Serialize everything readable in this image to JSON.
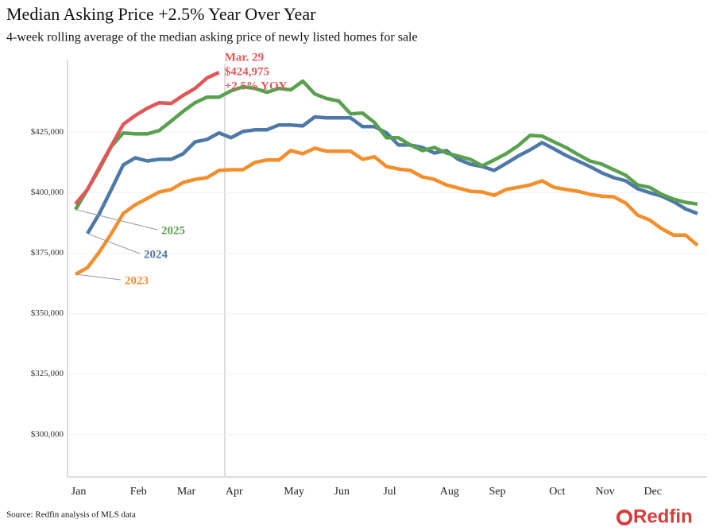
{
  "chart_data": {
    "type": "line",
    "title": "Median Asking Price +2.5% Year Over Year",
    "subtitle": "4-week rolling average of the median asking price of newly listed homes for sale",
    "categories": [
      "Jan",
      null,
      null,
      null,
      null,
      "Feb",
      null,
      null,
      null,
      "Mar",
      null,
      null,
      null,
      "Apr",
      null,
      null,
      null,
      null,
      "May",
      null,
      null,
      null,
      "Jun",
      null,
      null,
      null,
      "Jul",
      null,
      null,
      null,
      null,
      "Aug",
      null,
      null,
      null,
      "Sep",
      null,
      null,
      null,
      null,
      "Oct",
      null,
      null,
      null,
      "Nov",
      null,
      null,
      null,
      "Dec",
      null,
      null,
      null,
      null
    ],
    "series": [
      {
        "name": "2023",
        "color": "#f28e2b",
        "values": [
          366300,
          369000,
          375500,
          383100,
          391400,
          395000,
          397600,
          400300,
          401300,
          404200,
          405500,
          406200,
          409200,
          409500,
          409500,
          412500,
          413500,
          413500,
          417400,
          416100,
          418400,
          417100,
          417100,
          417100,
          413800,
          414800,
          410800,
          409800,
          409200,
          406500,
          405500,
          403200,
          401900,
          400600,
          400300,
          398900,
          401300,
          402200,
          403200,
          404900,
          402200,
          401300,
          400600,
          399300,
          398600,
          398300,
          395700,
          390700,
          388700,
          385100,
          382500,
          382500,
          378200
        ]
      },
      {
        "name": "2024",
        "color": "#4e79a7",
        "values": [
          null,
          383100,
          391400,
          401300,
          411500,
          414400,
          413100,
          413800,
          413800,
          416100,
          421000,
          422000,
          424700,
          422700,
          425300,
          426000,
          426000,
          428000,
          428000,
          427600,
          431300,
          430900,
          430900,
          430900,
          427300,
          427300,
          424700,
          419700,
          419700,
          418700,
          416400,
          417400,
          413800,
          411800,
          410800,
          409200,
          412100,
          415100,
          417700,
          420700,
          418100,
          415400,
          413100,
          410800,
          408200,
          406200,
          404900,
          401600,
          400000,
          398600,
          396300,
          393300,
          391400
        ]
      },
      {
        "name": "2025",
        "color": "#59a14f",
        "values": [
          393000,
          401300,
          409800,
          419100,
          424700,
          424300,
          424300,
          425700,
          429600,
          433600,
          437200,
          439500,
          439500,
          442100,
          443800,
          443100,
          441500,
          443100,
          442500,
          446100,
          440800,
          438900,
          437900,
          432600,
          432900,
          429000,
          422700,
          422700,
          419700,
          417400,
          418700,
          416400,
          415100,
          413800,
          411100,
          413500,
          416100,
          419400,
          423700,
          423400,
          421000,
          418700,
          415800,
          413100,
          411800,
          409500,
          407200,
          403200,
          402200,
          399300,
          397300,
          396000,
          395300
        ]
      },
      {
        "color": "#e15759",
        "values": [
          395300,
          401300,
          410500,
          419400,
          428300,
          431900,
          434900,
          437200,
          436900,
          440200,
          443100,
          447400,
          449700,
          null,
          null,
          null,
          null,
          null,
          null,
          null,
          null,
          null,
          null,
          null,
          null,
          null,
          null,
          null,
          null,
          null,
          null,
          null,
          null,
          null,
          null,
          null,
          null,
          null,
          null,
          null,
          null,
          null,
          null,
          null,
          null,
          null,
          null,
          null,
          null,
          null,
          null,
          null,
          null
        ]
      }
    ],
    "annotation": [
      "Mar. 29",
      "$424,975",
      "+2.5% YOY"
    ],
    "ylim": [
      282500,
      455000
    ],
    "yticks": [
      {
        "value": 300000,
        "label": "$300,000"
      },
      {
        "value": 325000,
        "label": "$325,000"
      },
      {
        "value": 350000,
        "label": "$350,000"
      },
      {
        "value": 375000,
        "label": "$375,000"
      },
      {
        "value": 400000,
        "label": "$400,000"
      },
      {
        "value": 425000,
        "label": "$425,000"
      }
    ],
    "grid": true,
    "source": "Source: Redfin analysis of MLS data",
    "logo": "Redfin"
  }
}
